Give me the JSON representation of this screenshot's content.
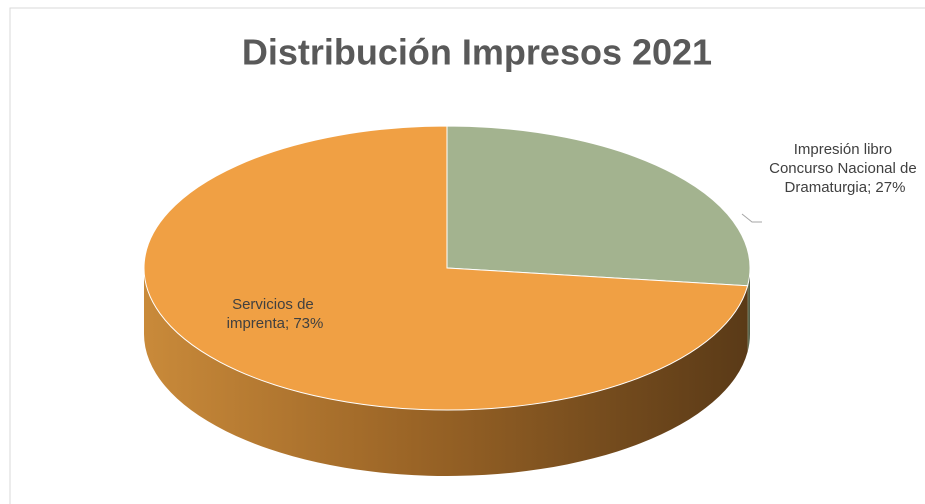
{
  "chart_data": {
    "type": "pie",
    "title": "Distribución Impresos 2021",
    "values": [
      27,
      73
    ],
    "value_labels": [
      "Impresión libro Concurso Nacional de Dramaturgia; 27%",
      "Servicios de imprenta; 73%"
    ],
    "colors": [
      "#a3b38f",
      "#f0a044"
    ]
  }
}
